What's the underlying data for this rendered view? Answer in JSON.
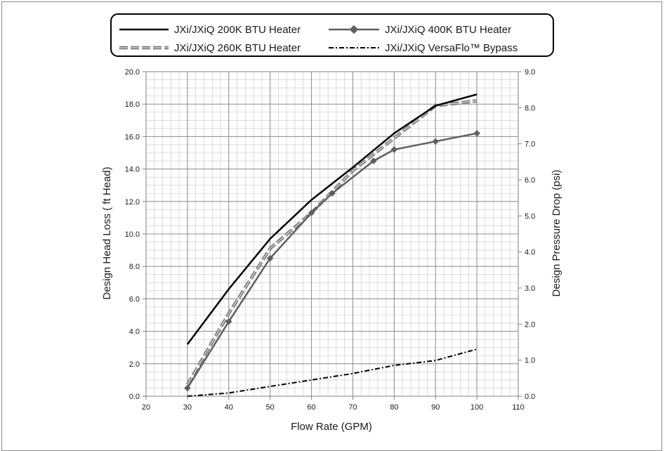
{
  "chart_data": {
    "type": "line",
    "xlabel": "Flow Rate (GPM)",
    "ylabel": "Design Head Loss ( ft Head)",
    "y2label": "Design Pressure Drop (psi)",
    "xlim": [
      20,
      110
    ],
    "ylim": [
      0,
      20
    ],
    "y2lim": [
      0,
      9
    ],
    "x_ticks": [
      "20",
      "30",
      "40",
      "50",
      "60",
      "70",
      "80",
      "90",
      "100",
      "110"
    ],
    "y_ticks": [
      "0.0",
      "2.0",
      "4.0",
      "6.0",
      "8.0",
      "10.0",
      "12.0",
      "14.0",
      "16.0",
      "18.0",
      "20.0"
    ],
    "y2_ticks": [
      "0.0",
      "1.0",
      "2.0",
      "3.0",
      "4.0",
      "5.0",
      "6.0",
      "7.0",
      "8.0",
      "9.0"
    ],
    "grid": true,
    "legend_position": "top",
    "series": [
      {
        "name": "JXi/JXiQ 200K BTU Heater",
        "style": "solid",
        "color": "#000000",
        "points": [
          [
            30,
            3.2
          ],
          [
            40,
            6.6
          ],
          [
            50,
            9.7
          ],
          [
            60,
            12.1
          ],
          [
            70,
            14.1
          ],
          [
            80,
            16.2
          ],
          [
            90,
            17.9
          ],
          [
            100,
            18.6
          ]
        ]
      },
      {
        "name": "JXi/JXiQ 400K BTU Heater",
        "style": "solid-diamond",
        "color": "#5f5f5f",
        "points": [
          [
            30,
            0.5
          ],
          [
            40,
            4.6
          ],
          [
            50,
            8.5
          ],
          [
            60,
            11.3
          ],
          [
            65,
            12.5
          ],
          [
            75,
            14.5
          ],
          [
            80,
            15.2
          ],
          [
            90,
            15.7
          ],
          [
            100,
            16.2
          ]
        ]
      },
      {
        "name": "JXi/JXiQ 260K BTU Heater",
        "style": "dashed-double",
        "color": "#8c8c8c",
        "points": [
          [
            30,
            0.7
          ],
          [
            40,
            5.1
          ],
          [
            50,
            9.1
          ],
          [
            60,
            11.3
          ],
          [
            70,
            13.9
          ],
          [
            80,
            15.9
          ],
          [
            90,
            17.9
          ],
          [
            100,
            18.2
          ]
        ]
      },
      {
        "name": "JXi/JXiQ VersaFlo™ Bypass",
        "style": "dash-dot",
        "color": "#000000",
        "points": [
          [
            30,
            0.0
          ],
          [
            40,
            0.2
          ],
          [
            50,
            0.6
          ],
          [
            60,
            1.0
          ],
          [
            70,
            1.4
          ],
          [
            80,
            1.9
          ],
          [
            90,
            2.2
          ],
          [
            100,
            2.9
          ]
        ]
      }
    ]
  }
}
